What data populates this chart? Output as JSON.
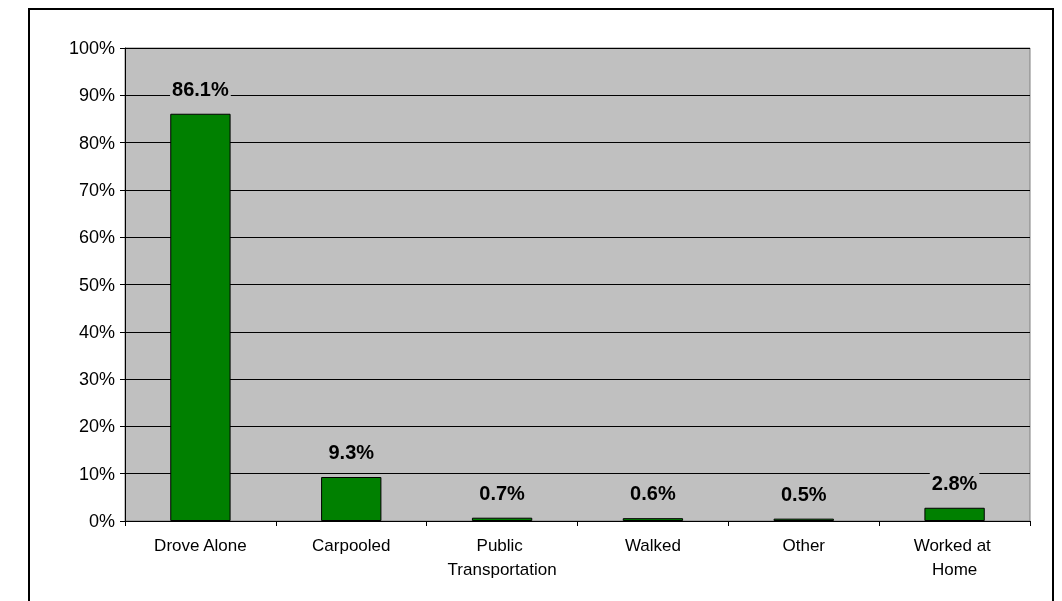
{
  "chart_data": {
    "type": "bar",
    "categories": [
      "Drove Alone",
      "Carpooled",
      "Public Transportation",
      "Walked",
      "Other",
      "Worked at Home"
    ],
    "values": [
      86.1,
      9.3,
      0.7,
      0.6,
      0.5,
      2.8
    ],
    "value_labels": [
      "86.1%",
      "9.3%",
      "0.7%",
      "0.6%",
      "0.5%",
      "2.8%"
    ],
    "color": "#008000",
    "ylim": [
      0,
      100
    ],
    "yticks": [
      {
        "value": 0,
        "label": "0%"
      },
      {
        "value": 10,
        "label": "10%"
      },
      {
        "value": 20,
        "label": "20%"
      },
      {
        "value": 30,
        "label": "30%"
      },
      {
        "value": 40,
        "label": "40%"
      },
      {
        "value": 50,
        "label": "50%"
      },
      {
        "value": 60,
        "label": "60%"
      },
      {
        "value": 70,
        "label": "70%"
      },
      {
        "value": 80,
        "label": "80%"
      },
      {
        "value": 90,
        "label": "90%"
      },
      {
        "value": 100,
        "label": "100%"
      }
    ],
    "grid": "y"
  }
}
